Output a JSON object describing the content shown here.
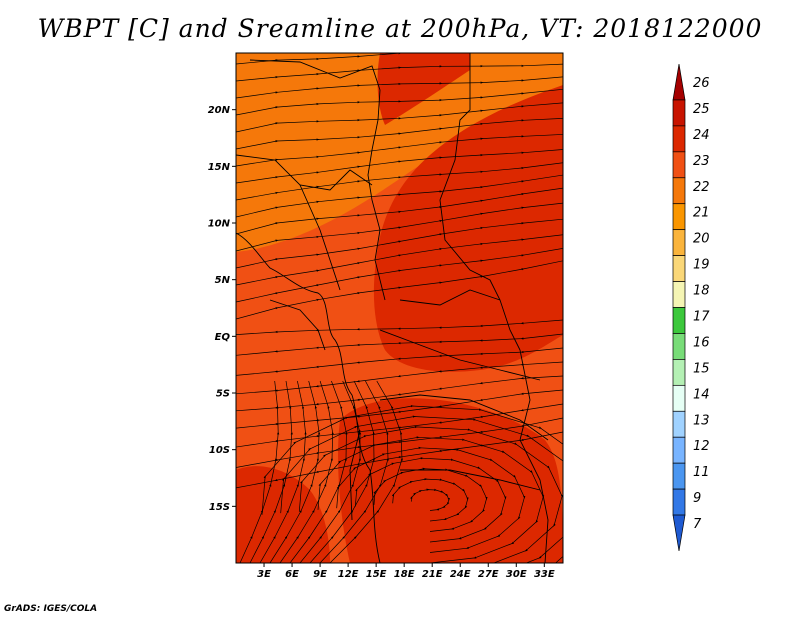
{
  "title": "WBPT [C] and Sreamline at 200hPa, VT: 2018122000",
  "credit": "GrADS: IGES/COLA",
  "map": {
    "lat_ticks": [
      {
        "label": "20N",
        "lat": 20
      },
      {
        "label": "15N",
        "lat": 15
      },
      {
        "label": "10N",
        "lat": 10
      },
      {
        "label": "5N",
        "lat": 5
      },
      {
        "label": "EQ",
        "lat": 0
      },
      {
        "label": "5S",
        "lat": -5
      },
      {
        "label": "10S",
        "lat": -10
      },
      {
        "label": "15S",
        "lat": -15
      }
    ],
    "lon_ticks": [
      {
        "label": "3E",
        "lon": 3
      },
      {
        "label": "6E",
        "lon": 6
      },
      {
        "label": "9E",
        "lon": 9
      },
      {
        "label": "12E",
        "lon": 12
      },
      {
        "label": "15E",
        "lon": 15
      },
      {
        "label": "18E",
        "lon": 18
      },
      {
        "label": "21E",
        "lon": 21
      },
      {
        "label": "24E",
        "lon": 24
      },
      {
        "label": "27E",
        "lon": 27
      },
      {
        "label": "30E",
        "lon": 30
      },
      {
        "label": "33E",
        "lon": 33
      }
    ],
    "lon_range": [
      0,
      35
    ],
    "lat_range": [
      -20,
      25
    ]
  },
  "colorbar": {
    "labels": [
      "26",
      "25",
      "24",
      "23",
      "22",
      "21",
      "20",
      "19",
      "18",
      "17",
      "16",
      "15",
      "14",
      "13",
      "12",
      "11",
      "9",
      "7"
    ],
    "colors": [
      "#a50000",
      "#c81400",
      "#dc2800",
      "#f05014",
      "#f5780a",
      "#fa9600",
      "#fab43c",
      "#fad778",
      "#f5f5b4",
      "#3cc83c",
      "#78dc78",
      "#b4f0b4",
      "#e6fff5",
      "#a0d2ff",
      "#78b4ff",
      "#4b96f0",
      "#3278e6",
      "#1e5ad2"
    ]
  },
  "colors": {
    "base": "#f05014",
    "warm": "#dc2800",
    "cool": "#f5780a",
    "stream": "#000000",
    "border": "#000000"
  }
}
